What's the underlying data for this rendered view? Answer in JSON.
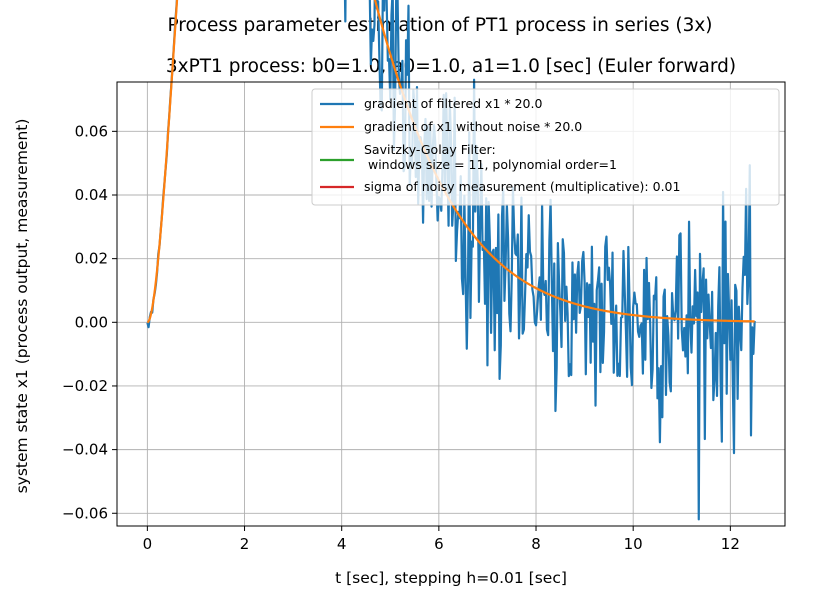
{
  "chart_data": {
    "type": "line",
    "suptitle": "Process parameter estimation of PT1 process in series (3x)",
    "title": "3xPT1 process: b0=1.0, a0=1.0, a1=1.0 [sec] (Euler forward)",
    "xlabel": "t [sec], stepping h=0.01 [sec]",
    "ylabel": "system state x1 (process output, measurement)",
    "xlim": [
      -0.625,
      13.125
    ],
    "ylim": [
      -0.064,
      0.0755
    ],
    "xticks": [
      0,
      2,
      4,
      6,
      8,
      10,
      12
    ],
    "yticks": [
      -0.06,
      -0.04,
      -0.02,
      0.0,
      0.02,
      0.04,
      0.06
    ],
    "xtick_labels": [
      "0",
      "2",
      "4",
      "6",
      "8",
      "10",
      "12"
    ],
    "ytick_labels": [
      "−0.06",
      "−0.04",
      "−0.02",
      "0.00",
      "0.02",
      "0.04",
      "0.06"
    ],
    "grid": true,
    "legend_position": "upper right",
    "noise_sigma": 0.01,
    "t_end": 12.5,
    "series": [
      {
        "name": "gradient of filtered x1 * 20.0",
        "color": "#1f77b4",
        "kind": "noisy"
      },
      {
        "name": "gradient of x1 without noise * 20.0",
        "color": "#ff7f0e",
        "kind": "smooth"
      },
      {
        "name": "Savitzky-Golay Filter:\n windows size = 11, polynomial order=1",
        "color": "#2ca02c",
        "kind": "legend-only"
      },
      {
        "name": "sigma of noisy measurement (multiplicative): 0.01",
        "color": "#d62728",
        "kind": "legend-only"
      }
    ]
  }
}
